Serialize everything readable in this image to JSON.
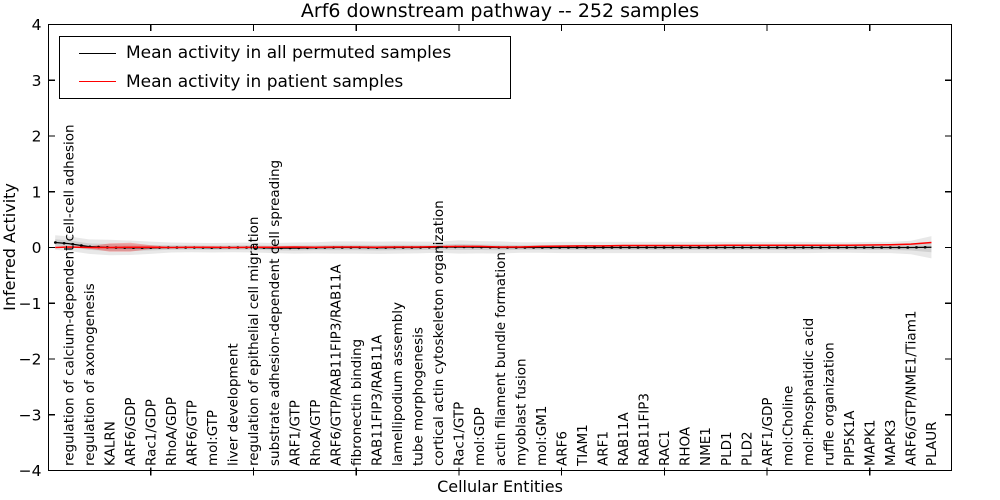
{
  "figure": {
    "title": "Arf6 downstream pathway -- 252 samples",
    "xlabel": "Cellular Entities",
    "ylabel": "Inferred Activity"
  },
  "legend": {
    "entries": [
      {
        "label": "Mean activity in all permuted samples",
        "color": "#000000"
      },
      {
        "label": "Mean activity in patient samples",
        "color": "#ff0000"
      }
    ]
  },
  "chart_data": {
    "type": "line",
    "title": "Arf6 downstream pathway -- 252 samples",
    "xlabel": "Cellular Entities",
    "ylabel": "Inferred Activity",
    "ylim": [
      -4,
      4
    ],
    "xlim": [
      0,
      44
    ],
    "grid": false,
    "legend_position": "upper left",
    "yticks": [
      {
        "v": 4,
        "label": "4"
      },
      {
        "v": 3,
        "label": "3"
      },
      {
        "v": 2,
        "label": "2"
      },
      {
        "v": 1,
        "label": "1"
      },
      {
        "v": 0,
        "label": "0"
      },
      {
        "v": -1,
        "label": "−1"
      },
      {
        "v": -2,
        "label": "−2"
      },
      {
        "v": -3,
        "label": "−3"
      },
      {
        "v": -4,
        "label": "−4"
      }
    ],
    "xticks_major": [
      5,
      10,
      15,
      20,
      25,
      30,
      35,
      40
    ],
    "categories": [
      "regulation of calcium-dependent cell-cell adhesion",
      "regulation of axonogenesis",
      "KALRN",
      "ARF6/GDP",
      "Rac1/GDP",
      "RhoA/GDP",
      "ARF6/GTP",
      "mol:GTP",
      "liver development",
      "regulation of epithelial cell migration",
      "substrate adhesion-dependent cell spreading",
      "ARF1/GTP",
      "RhoA/GTP",
      "ARF6/GTP/RAB11FIP3/RAB11A",
      "fibronectin binding",
      "RAB11FIP3/RAB11A",
      "lamellipodium assembly",
      "tube morphogenesis",
      "cortical actin cytoskeleton organization",
      "Rac1/GTP",
      "mol:GDP",
      "actin filament bundle formation",
      "myoblast fusion",
      "mol:GM1",
      "ARF6",
      "TIAM1",
      "ARF1",
      "RAB11A",
      "RAB11FIP3",
      "RAC1",
      "RHOA",
      "NME1",
      "PLD1",
      "PLD2",
      "ARF1/GDP",
      "mol:Choline",
      "mol:Phosphatidic acid",
      "ruffle organization",
      "PIP5K1A",
      "MAPK1",
      "MAPK3",
      "ARF6/GTP/NME1/Tiam1",
      "PLAUR"
    ],
    "x": [
      0.35,
      1,
      2,
      3,
      4,
      5,
      6,
      7,
      8,
      9,
      10,
      11,
      12,
      13,
      14,
      15,
      16,
      17,
      18,
      19,
      20,
      21,
      22,
      23,
      24,
      25,
      26,
      27,
      28,
      29,
      30,
      31,
      32,
      33,
      34,
      35,
      36,
      37,
      38,
      39,
      40,
      41,
      42,
      43
    ],
    "series": [
      {
        "name": "Mean activity in all permuted samples",
        "color": "#000000",
        "style": "solid-with-dots",
        "values": [
          0.09,
          0.07,
          0.015,
          0,
          -0.005,
          -0.005,
          0,
          0,
          -0.005,
          0,
          0,
          -0.01,
          -0.01,
          -0.005,
          0,
          0,
          -0.005,
          0,
          0,
          0.005,
          0.01,
          0.005,
          0,
          0,
          0,
          0,
          0,
          0,
          0,
          0,
          0,
          0,
          0,
          0,
          0,
          0,
          0,
          0,
          0,
          0,
          0,
          0,
          0,
          0.005
        ]
      },
      {
        "name": "Mean activity in patient samples",
        "color": "#ff0000",
        "style": "solid",
        "values": [
          0,
          0.01,
          0,
          0,
          0.005,
          0.005,
          0,
          0.005,
          0.005,
          0,
          0.005,
          0.005,
          0.01,
          0.005,
          0.01,
          0.01,
          0.005,
          0.01,
          0.01,
          0.015,
          0.02,
          0.02,
          0.01,
          0.01,
          0.02,
          0.025,
          0.03,
          0.03,
          0.035,
          0.035,
          0.035,
          0.035,
          0.035,
          0.04,
          0.04,
          0.04,
          0.04,
          0.04,
          0.04,
          0.04,
          0.045,
          0.05,
          0.06,
          0.09
        ]
      }
    ],
    "permuted_band": {
      "color": "#000000",
      "opacity_outer": 0.09,
      "opacity_inner": 0.1,
      "inner_scale": 0.45,
      "half_width": [
        0.13,
        0.13,
        0.13,
        0.14,
        0.13,
        0.11,
        0.09,
        0.085,
        0.085,
        0.085,
        0.09,
        0.09,
        0.1,
        0.1,
        0.11,
        0.11,
        0.11,
        0.11,
        0.105,
        0.1,
        0.12,
        0.11,
        0.11,
        0.095,
        0.095,
        0.1,
        0.1,
        0.1,
        0.1,
        0.1,
        0.1,
        0.1,
        0.1,
        0.1,
        0.1,
        0.1,
        0.1,
        0.1,
        0.095,
        0.095,
        0.1,
        0.1,
        0.12,
        0.2
      ]
    },
    "patient_band": {
      "color": "#ff0000",
      "opacity": 0.28,
      "half_width": [
        0,
        0,
        0.02,
        0.075,
        0.08,
        0.035,
        0.01,
        0,
        0,
        0,
        0,
        0,
        0,
        0,
        0,
        0,
        0,
        0,
        0,
        0,
        0,
        0,
        0,
        0,
        0,
        0,
        0,
        0,
        0,
        0,
        0,
        0,
        0,
        0,
        0,
        0,
        0,
        0,
        0,
        0,
        0,
        0,
        0,
        0
      ]
    }
  }
}
